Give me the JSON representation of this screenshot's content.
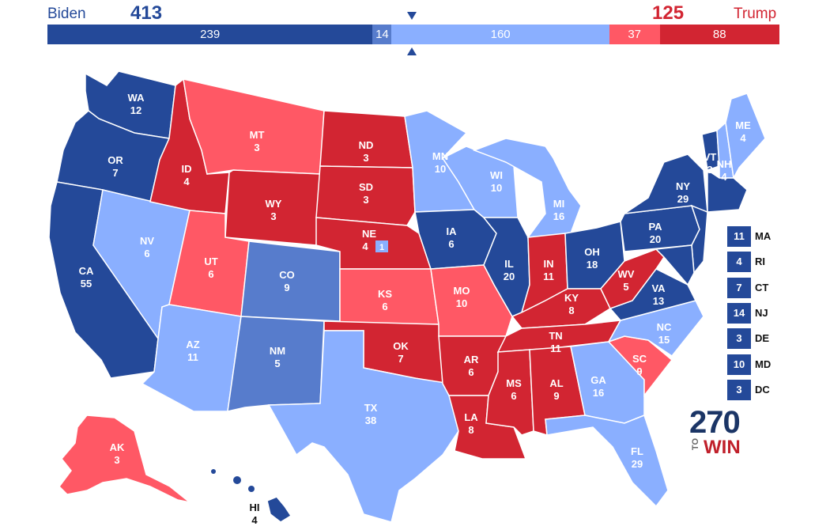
{
  "header": {
    "left_name": "Biden",
    "left_total": "413",
    "right_total": "125",
    "right_name": "Trump"
  },
  "colors": {
    "safe_d": "#244999",
    "likely_d": "#577ccc",
    "lean_d": "#8aafff",
    "lean_r": "#ff5865",
    "safe_r": "#d22532",
    "tossup": "#c3c3c3"
  },
  "bar": [
    {
      "value": "239",
      "rating": "safe_d"
    },
    {
      "value": "14",
      "rating": "likely_d"
    },
    {
      "value": "160",
      "rating": "lean_d"
    },
    {
      "value": "37",
      "rating": "lean_r"
    },
    {
      "value": "88",
      "rating": "safe_r"
    }
  ],
  "states": {
    "WA": {
      "abbr": "WA",
      "ev": "12",
      "rating": "safe_d"
    },
    "OR": {
      "abbr": "OR",
      "ev": "7",
      "rating": "safe_d"
    },
    "CA": {
      "abbr": "CA",
      "ev": "55",
      "rating": "safe_d"
    },
    "NV": {
      "abbr": "NV",
      "ev": "6",
      "rating": "lean_d"
    },
    "ID": {
      "abbr": "ID",
      "ev": "4",
      "rating": "safe_r"
    },
    "MT": {
      "abbr": "MT",
      "ev": "3",
      "rating": "lean_r"
    },
    "WY": {
      "abbr": "WY",
      "ev": "3",
      "rating": "safe_r"
    },
    "UT": {
      "abbr": "UT",
      "ev": "6",
      "rating": "lean_r"
    },
    "AZ": {
      "abbr": "AZ",
      "ev": "11",
      "rating": "lean_d"
    },
    "CO": {
      "abbr": "CO",
      "ev": "9",
      "rating": "likely_d"
    },
    "NM": {
      "abbr": "NM",
      "ev": "5",
      "rating": "likely_d"
    },
    "ND": {
      "abbr": "ND",
      "ev": "3",
      "rating": "safe_r"
    },
    "SD": {
      "abbr": "SD",
      "ev": "3",
      "rating": "safe_r"
    },
    "NE": {
      "abbr": "NE",
      "ev": "4",
      "rating": "safe_r",
      "extra": "1"
    },
    "KS": {
      "abbr": "KS",
      "ev": "6",
      "rating": "lean_r"
    },
    "OK": {
      "abbr": "OK",
      "ev": "7",
      "rating": "safe_r"
    },
    "TX": {
      "abbr": "TX",
      "ev": "38",
      "rating": "lean_d"
    },
    "MN": {
      "abbr": "MN",
      "ev": "10",
      "rating": "lean_d"
    },
    "IA": {
      "abbr": "IA",
      "ev": "6",
      "rating": "safe_d"
    },
    "MO": {
      "abbr": "MO",
      "ev": "10",
      "rating": "lean_r"
    },
    "AR": {
      "abbr": "AR",
      "ev": "6",
      "rating": "safe_r"
    },
    "LA": {
      "abbr": "LA",
      "ev": "8",
      "rating": "safe_r"
    },
    "WI": {
      "abbr": "WI",
      "ev": "10",
      "rating": "lean_d"
    },
    "IL": {
      "abbr": "IL",
      "ev": "20",
      "rating": "safe_d"
    },
    "MI": {
      "abbr": "MI",
      "ev": "16",
      "rating": "lean_d"
    },
    "IN": {
      "abbr": "IN",
      "ev": "11",
      "rating": "safe_r"
    },
    "OH": {
      "abbr": "OH",
      "ev": "18",
      "rating": "safe_d"
    },
    "KY": {
      "abbr": "KY",
      "ev": "8",
      "rating": "safe_r"
    },
    "TN": {
      "abbr": "TN",
      "ev": "11",
      "rating": "safe_r"
    },
    "MS": {
      "abbr": "MS",
      "ev": "6",
      "rating": "safe_r"
    },
    "AL": {
      "abbr": "AL",
      "ev": "9",
      "rating": "safe_r"
    },
    "GA": {
      "abbr": "GA",
      "ev": "16",
      "rating": "lean_d"
    },
    "FL": {
      "abbr": "FL",
      "ev": "29",
      "rating": "lean_d"
    },
    "SC": {
      "abbr": "SC",
      "ev": "9",
      "rating": "lean_r"
    },
    "NC": {
      "abbr": "NC",
      "ev": "15",
      "rating": "lean_d"
    },
    "VA": {
      "abbr": "VA",
      "ev": "13",
      "rating": "safe_d"
    },
    "WV": {
      "abbr": "WV",
      "ev": "5",
      "rating": "safe_r"
    },
    "PA": {
      "abbr": "PA",
      "ev": "20",
      "rating": "safe_d"
    },
    "NY": {
      "abbr": "NY",
      "ev": "29",
      "rating": "safe_d"
    },
    "VT": {
      "abbr": "VT",
      "ev": "3",
      "rating": "safe_d"
    },
    "NH": {
      "abbr": "NH",
      "ev": "4",
      "rating": "lean_d"
    },
    "ME": {
      "abbr": "ME",
      "ev": "4",
      "rating": "lean_d"
    },
    "AK": {
      "abbr": "AK",
      "ev": "3",
      "rating": "lean_r"
    },
    "HI": {
      "abbr": "HI",
      "ev": "4",
      "rating": "safe_d"
    }
  },
  "small_states": [
    {
      "abbr": "MA",
      "ev": "11",
      "rating": "safe_d"
    },
    {
      "abbr": "RI",
      "ev": "4",
      "rating": "safe_d"
    },
    {
      "abbr": "CT",
      "ev": "7",
      "rating": "safe_d"
    },
    {
      "abbr": "NJ",
      "ev": "14",
      "rating": "safe_d"
    },
    {
      "abbr": "DE",
      "ev": "3",
      "rating": "safe_d"
    },
    {
      "abbr": "MD",
      "ev": "10",
      "rating": "safe_d"
    },
    {
      "abbr": "DC",
      "ev": "3",
      "rating": "safe_d"
    }
  ],
  "logo": {
    "number": "270",
    "to": "TO",
    "win": "WIN"
  }
}
